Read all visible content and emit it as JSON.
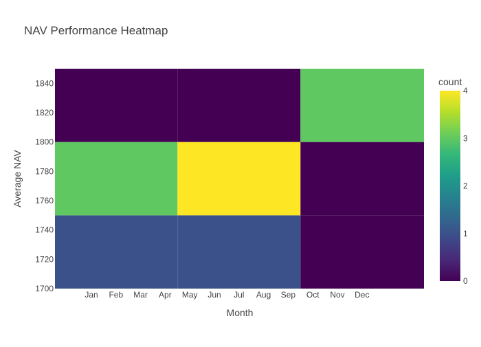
{
  "chart_data": {
    "type": "heatmap",
    "title": "NAV Performance Heatmap",
    "xlabel": "Month",
    "ylabel": "Average NAV",
    "x_ticks": [
      "Jan",
      "Feb",
      "Mar",
      "Apr",
      "May",
      "Jun",
      "Jul",
      "Aug",
      "Sep",
      "Oct",
      "Nov",
      "Dec"
    ],
    "y_range": [
      1700,
      1850
    ],
    "y_ticks": [
      1700,
      1720,
      1740,
      1760,
      1780,
      1800,
      1820,
      1840
    ],
    "cells": [
      {
        "x_range": [
          "Jan",
          "Apr"
        ],
        "y_range": [
          1700,
          1750
        ],
        "count": 1
      },
      {
        "x_range": [
          "May",
          "Sep"
        ],
        "y_range": [
          1700,
          1750
        ],
        "count": 1
      },
      {
        "x_range": [
          "Oct",
          "Dec"
        ],
        "y_range": [
          1700,
          1750
        ],
        "count": 0
      },
      {
        "x_range": [
          "Jan",
          "Apr"
        ],
        "y_range": [
          1750,
          1800
        ],
        "count": 3
      },
      {
        "x_range": [
          "May",
          "Sep"
        ],
        "y_range": [
          1750,
          1800
        ],
        "count": 4
      },
      {
        "x_range": [
          "Oct",
          "Dec"
        ],
        "y_range": [
          1750,
          1800
        ],
        "count": 0
      },
      {
        "x_range": [
          "Jan",
          "Apr"
        ],
        "y_range": [
          1800,
          1850
        ],
        "count": 0
      },
      {
        "x_range": [
          "May",
          "Sep"
        ],
        "y_range": [
          1800,
          1850
        ],
        "count": 0
      },
      {
        "x_range": [
          "Oct",
          "Dec"
        ],
        "y_range": [
          1800,
          1850
        ],
        "count": 3
      }
    ],
    "colorscale": "viridis",
    "colorbar": {
      "title": "count",
      "range": [
        0,
        4
      ],
      "ticks": [
        0,
        1,
        2,
        3,
        4
      ]
    }
  }
}
